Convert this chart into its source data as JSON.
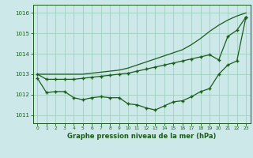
{
  "bg_color": "#cce8e8",
  "grid_color": "#99ccbb",
  "line_color": "#1a5c1a",
  "title": "Graphe pression niveau de la mer (hPa)",
  "xlim": [
    -0.5,
    23.5
  ],
  "ylim": [
    1010.6,
    1016.4
  ],
  "yticks": [
    1011,
    1012,
    1013,
    1014,
    1015,
    1016
  ],
  "xticks": [
    0,
    1,
    2,
    3,
    4,
    5,
    6,
    7,
    8,
    9,
    10,
    11,
    12,
    13,
    14,
    15,
    16,
    17,
    18,
    19,
    20,
    21,
    22,
    23
  ],
  "line1_x": [
    0,
    1,
    2,
    3,
    4,
    5,
    6,
    7,
    8,
    9,
    10,
    11,
    12,
    13,
    14,
    15,
    16,
    17,
    18,
    19,
    20,
    21,
    22,
    23
  ],
  "line1_y": [
    1013.0,
    1013.0,
    1013.0,
    1013.0,
    1013.0,
    1013.0,
    1013.05,
    1013.1,
    1013.15,
    1013.2,
    1013.3,
    1013.45,
    1013.6,
    1013.75,
    1013.9,
    1014.05,
    1014.2,
    1014.45,
    1014.75,
    1015.1,
    1015.4,
    1015.65,
    1015.85,
    1016.0
  ],
  "line2_x": [
    0,
    1,
    2,
    3,
    4,
    5,
    6,
    7,
    8,
    9,
    10,
    11,
    12,
    13,
    14,
    15,
    16,
    17,
    18,
    19,
    20,
    21,
    22,
    23
  ],
  "line2_y": [
    1013.0,
    1012.75,
    1012.75,
    1012.75,
    1012.75,
    1012.8,
    1012.85,
    1012.9,
    1012.95,
    1013.0,
    1013.05,
    1013.15,
    1013.25,
    1013.35,
    1013.45,
    1013.55,
    1013.65,
    1013.75,
    1013.85,
    1013.95,
    1013.7,
    1014.85,
    1015.15,
    1015.8
  ],
  "line3_x": [
    0,
    1,
    2,
    3,
    4,
    5,
    6,
    7,
    8,
    9,
    10,
    11,
    12,
    13,
    14,
    15,
    16,
    17,
    18,
    19,
    20,
    21,
    22,
    23
  ],
  "line3_y": [
    1012.8,
    1012.1,
    1012.15,
    1012.15,
    1011.85,
    1011.75,
    1011.85,
    1011.9,
    1011.85,
    1011.85,
    1011.55,
    1011.5,
    1011.35,
    1011.25,
    1011.45,
    1011.65,
    1011.7,
    1011.9,
    1012.15,
    1012.3,
    1013.0,
    1013.45,
    1013.65,
    1015.8
  ]
}
